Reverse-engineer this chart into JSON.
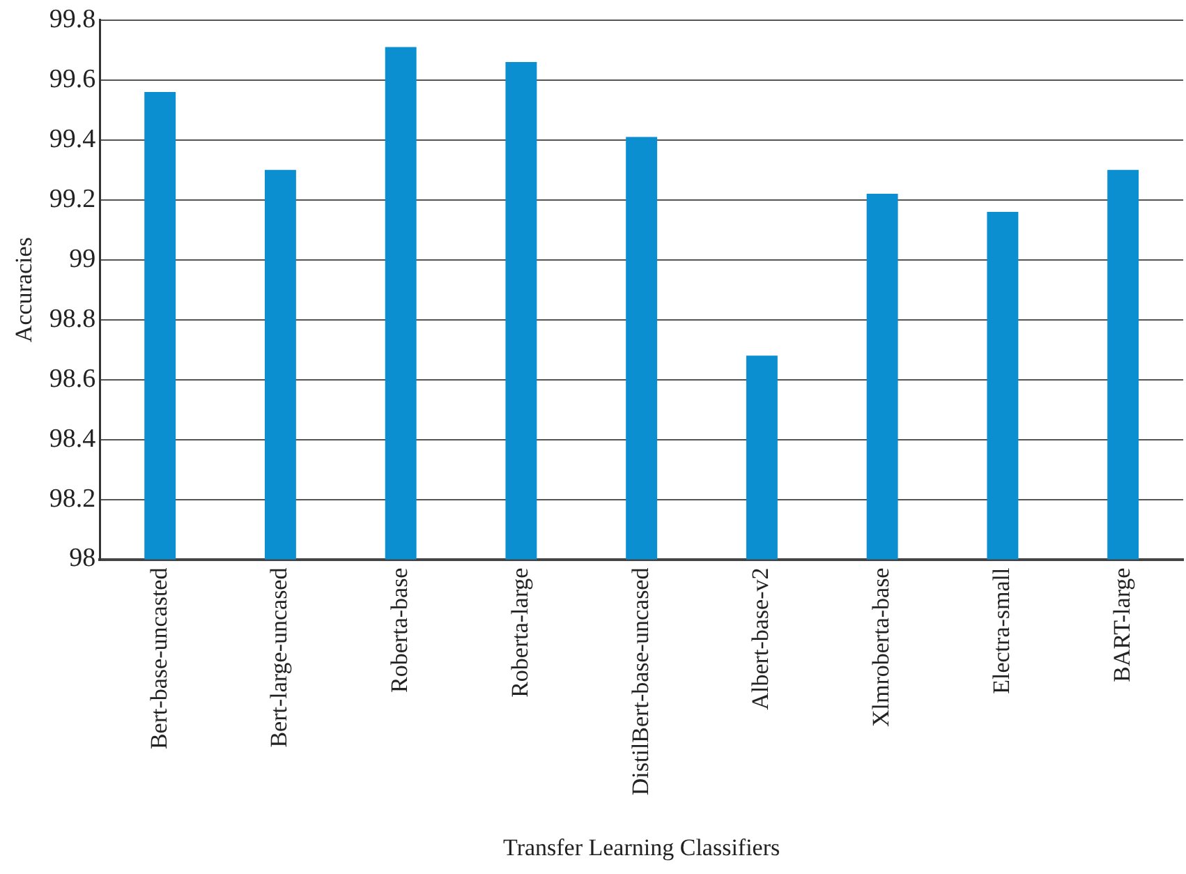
{
  "chart_data": {
    "type": "bar",
    "xlabel": "Transfer Learning Classifiers",
    "ylabel": "Accuracies",
    "categories": [
      "Bert-base-uncasted",
      "Bert-large-uncased",
      "Roberta-base",
      "Roberta-large",
      "DistilBert-base-uncased",
      "Albert-base-v2",
      "Xlmroberta-base",
      "Electra-small",
      "BART-large"
    ],
    "values": [
      99.56,
      99.3,
      99.71,
      99.66,
      99.41,
      98.68,
      99.22,
      99.16,
      99.3
    ],
    "color": "#0b8fd0",
    "ylim": [
      98,
      99.8
    ],
    "yticks": [
      98,
      98.2,
      98.4,
      98.6,
      98.8,
      99,
      99.2,
      99.4,
      99.6,
      99.8
    ],
    "grid": "y",
    "legend": false
  }
}
